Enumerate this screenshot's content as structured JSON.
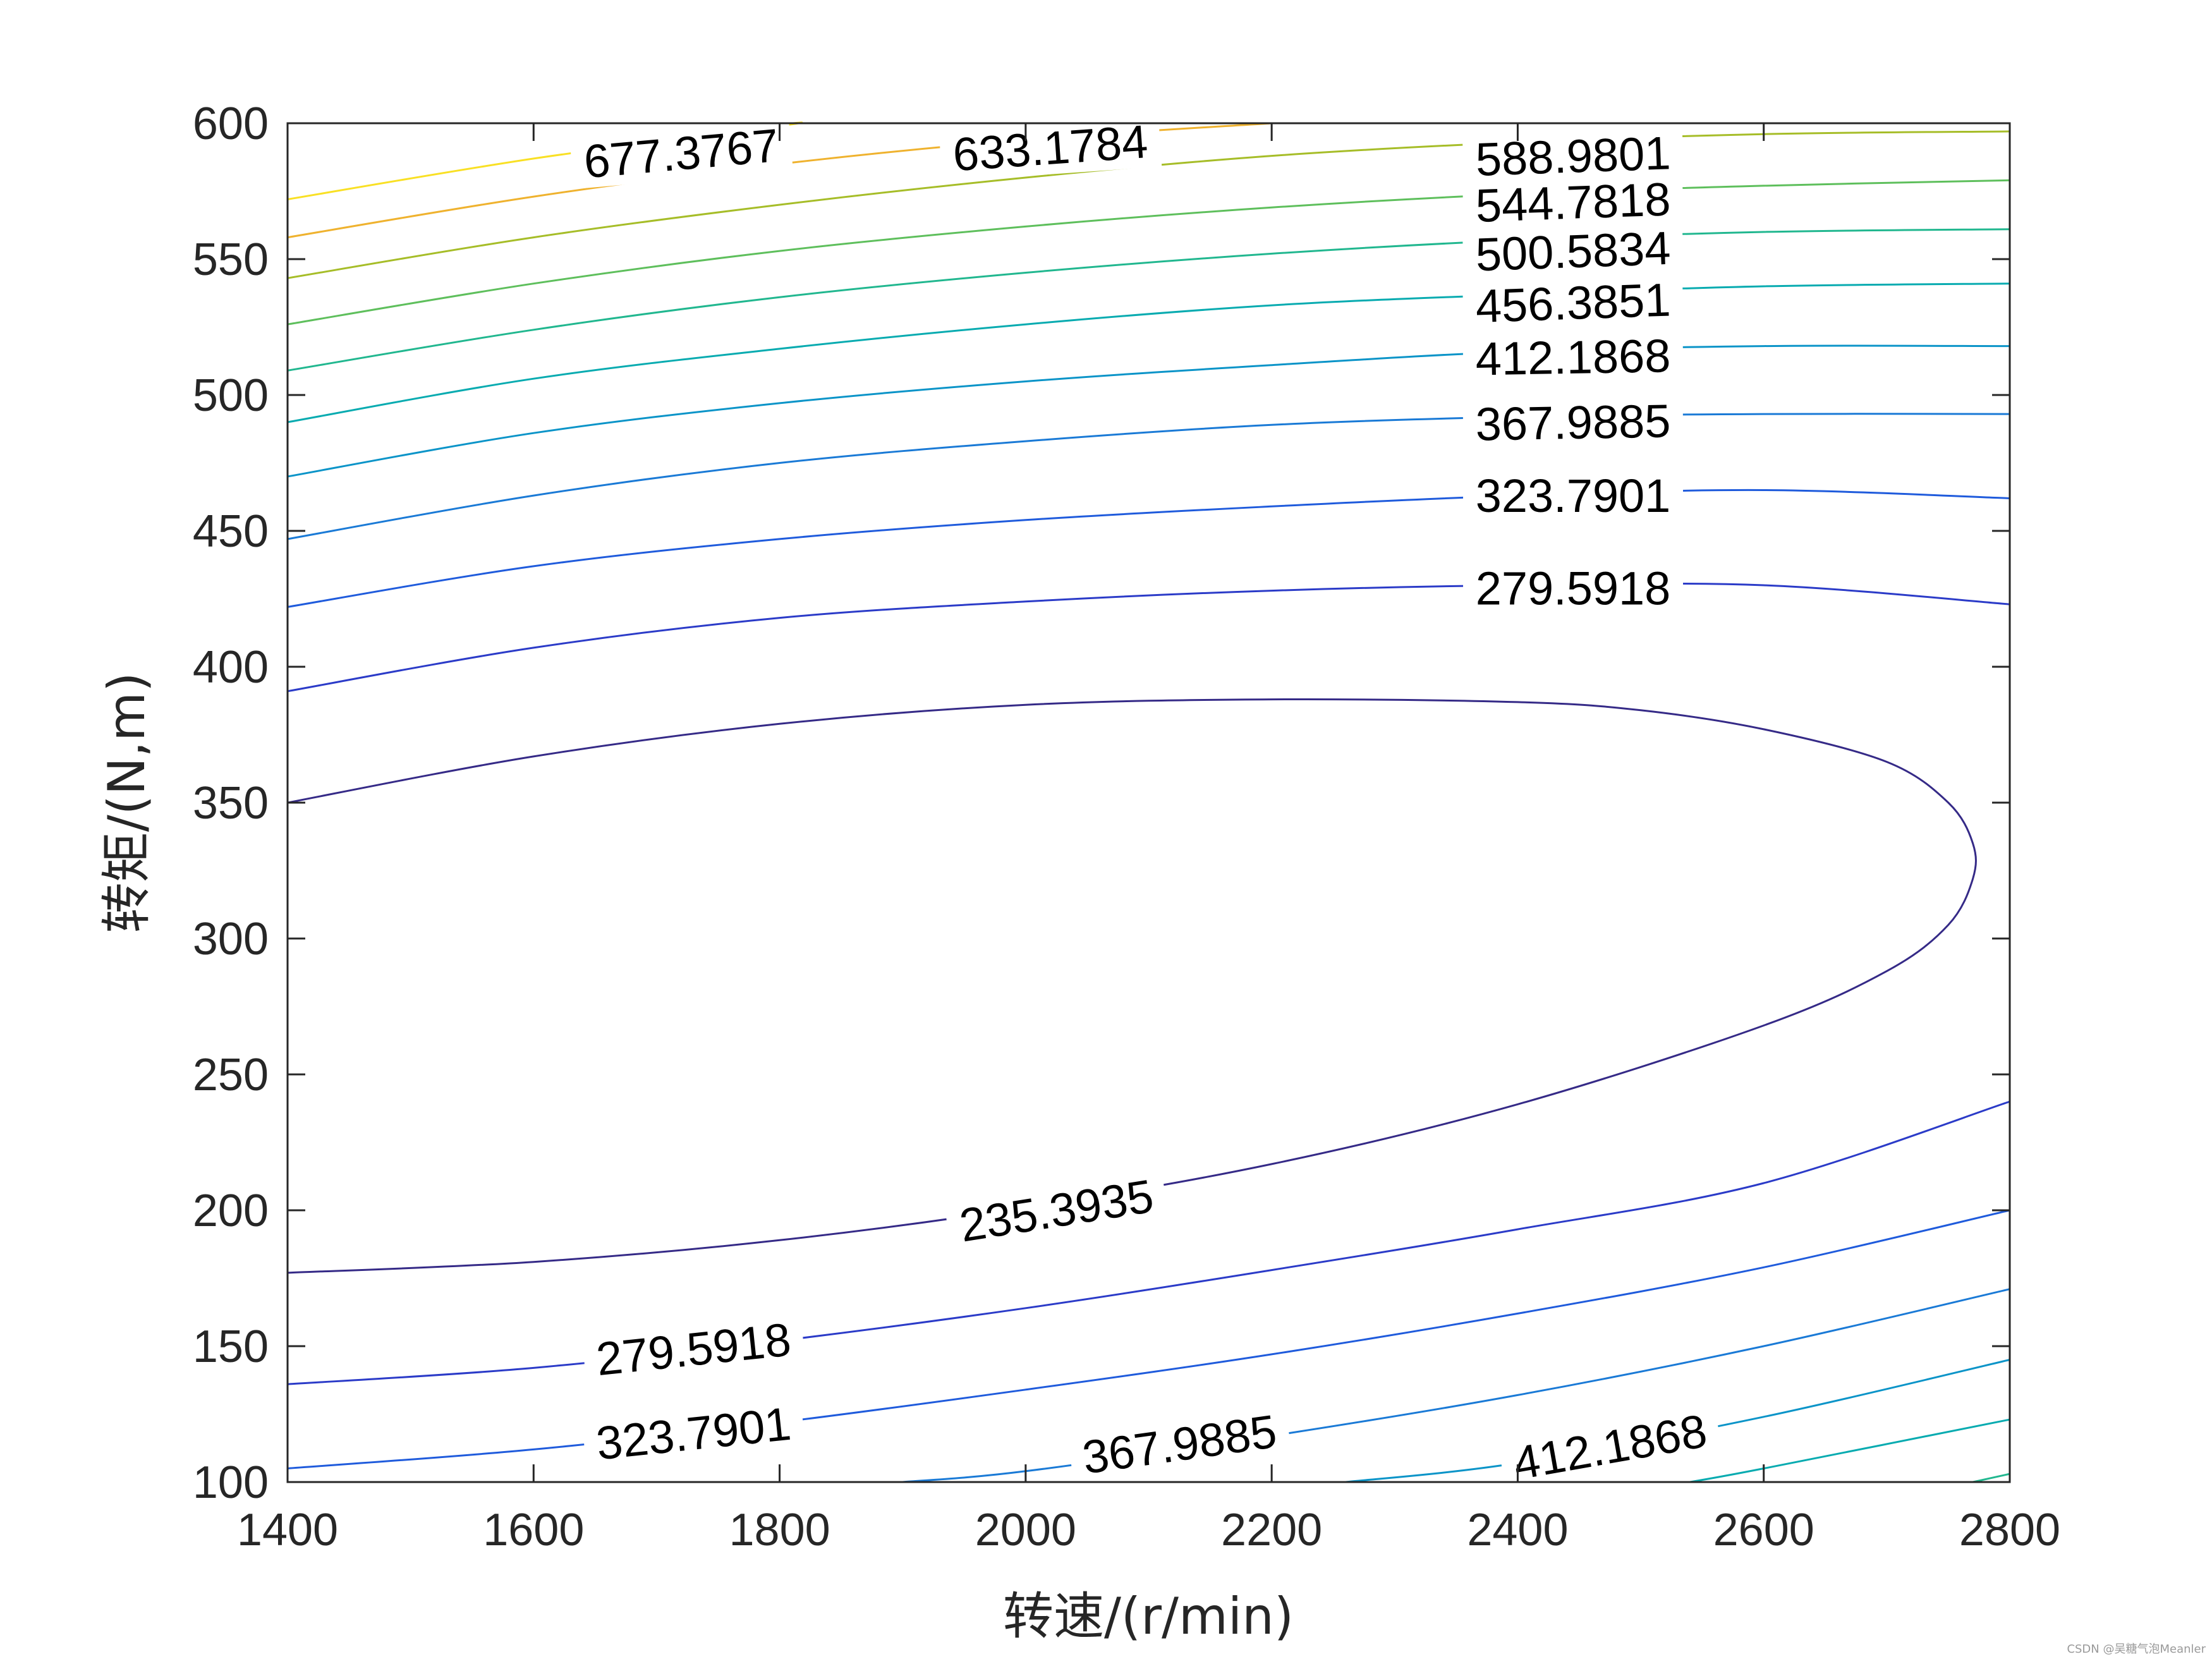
{
  "chart_data": {
    "type": "contour",
    "xlabel": "转速/(r/min)",
    "ylabel": "转矩/(N,m)",
    "xlim": [
      1400,
      2800
    ],
    "ylim": [
      100,
      600
    ],
    "xticks": [
      "1400",
      "1600",
      "1800",
      "2000",
      "2200",
      "2400",
      "2600",
      "2800"
    ],
    "yticks": [
      "100",
      "150",
      "200",
      "250",
      "300",
      "350",
      "400",
      "450",
      "500",
      "550",
      "600"
    ],
    "grid": false,
    "colormap": "parula",
    "levels": [
      {
        "value": "235.3935",
        "color": "#352a87",
        "lines": [
          [
            [
              1400,
              177
            ],
            [
              1600,
              181
            ],
            [
              1800,
              189
            ],
            [
              2000,
              201
            ],
            [
              2200,
              217
            ],
            [
              2400,
              239
            ],
            [
              2600,
              268
            ],
            [
              2700,
              288
            ],
            [
              2750,
              305
            ],
            [
              2770,
              322
            ],
            [
              2770,
              335
            ],
            [
              2750,
              350
            ],
            [
              2700,
              365
            ],
            [
              2600,
              377
            ],
            [
              2500,
              384
            ],
            [
              2400,
              387
            ],
            [
              2200,
              388
            ],
            [
              2000,
              386
            ],
            [
              1800,
              379
            ],
            [
              1600,
              367
            ],
            [
              1400,
              350
            ]
          ]
        ]
      },
      {
        "value": "279.5918",
        "color": "#2b3bc8",
        "lines": [
          [
            [
              1400,
              136
            ],
            [
              1600,
              142
            ],
            [
              1800,
              152
            ],
            [
              2000,
              164
            ],
            [
              2200,
              178
            ],
            [
              2400,
              193
            ],
            [
              2600,
              210
            ],
            [
              2800,
              240
            ]
          ],
          [
            [
              1400,
              391
            ],
            [
              1600,
              407
            ],
            [
              1800,
              418
            ],
            [
              2000,
              424
            ],
            [
              2200,
              428
            ],
            [
              2400,
              430
            ],
            [
              2600,
              430
            ],
            [
              2800,
              423
            ]
          ]
        ]
      },
      {
        "value": "323.7901",
        "color": "#1f5bdc",
        "lines": [
          [
            [
              1400,
              105
            ],
            [
              1600,
              112
            ],
            [
              1800,
              122
            ],
            [
              2000,
              134
            ],
            [
              2200,
              147
            ],
            [
              2400,
              162
            ],
            [
              2600,
              179
            ],
            [
              2800,
              200
            ]
          ],
          [
            [
              1400,
              422
            ],
            [
              1600,
              437
            ],
            [
              1800,
              447
            ],
            [
              2000,
              454
            ],
            [
              2200,
              459
            ],
            [
              2400,
              463
            ],
            [
              2600,
              465
            ],
            [
              2800,
              462
            ]
          ]
        ]
      },
      {
        "value": "367.9885",
        "color": "#1a7ad6",
        "lines": [
          [
            [
              1900,
              100
            ],
            [
              2000,
              104
            ],
            [
              2200,
              117
            ],
            [
              2400,
              132
            ],
            [
              2600,
              150
            ],
            [
              2800,
              171
            ]
          ],
          [
            [
              1400,
              447
            ],
            [
              1600,
              463
            ],
            [
              1800,
              475
            ],
            [
              2000,
              483
            ],
            [
              2200,
              489
            ],
            [
              2400,
              492
            ],
            [
              2600,
              493
            ],
            [
              2800,
              493
            ]
          ]
        ]
      },
      {
        "value": "412.1868",
        "color": "#0b94c8",
        "lines": [
          [
            [
              2260,
              100
            ],
            [
              2400,
              107
            ],
            [
              2600,
              124
            ],
            [
              2800,
              145
            ]
          ],
          [
            [
              1400,
              470
            ],
            [
              1600,
              486
            ],
            [
              1800,
              497
            ],
            [
              2000,
              505
            ],
            [
              2200,
              511
            ],
            [
              2400,
              516
            ],
            [
              2600,
              518
            ],
            [
              2800,
              518
            ]
          ]
        ]
      },
      {
        "value": "456.3851",
        "color": "#08abb0",
        "lines": [
          [
            [
              2540,
              100
            ],
            [
              2600,
              105
            ],
            [
              2800,
              123
            ]
          ],
          [
            [
              1400,
              490
            ],
            [
              1600,
              506
            ],
            [
              1800,
              517
            ],
            [
              2000,
              526
            ],
            [
              2200,
              533
            ],
            [
              2400,
              537
            ],
            [
              2600,
              540
            ],
            [
              2800,
              541
            ]
          ]
        ]
      },
      {
        "value": "500.5834",
        "color": "#21b78f",
        "lines": [
          [
            [
              2770,
              100
            ],
            [
              2800,
              103
            ]
          ],
          [
            [
              1400,
              509
            ],
            [
              1600,
              524
            ],
            [
              1800,
              536
            ],
            [
              2000,
              545
            ],
            [
              2200,
              552
            ],
            [
              2400,
              557
            ],
            [
              2600,
              560
            ],
            [
              2800,
              561
            ]
          ]
        ]
      },
      {
        "value": "544.7818",
        "color": "#5ebf5c",
        "lines": [
          [
            [
              1400,
              526
            ],
            [
              1600,
              541
            ],
            [
              1800,
              553
            ],
            [
              2000,
              562
            ],
            [
              2200,
              569
            ],
            [
              2400,
              574
            ],
            [
              2600,
              577
            ],
            [
              2800,
              579
            ]
          ]
        ]
      },
      {
        "value": "588.9801",
        "color": "#a6bd28",
        "lines": [
          [
            [
              1400,
              543
            ],
            [
              1600,
              558
            ],
            [
              1800,
              570
            ],
            [
              2000,
              580
            ],
            [
              2200,
              588
            ],
            [
              2400,
              593
            ],
            [
              2600,
              596
            ],
            [
              2800,
              597
            ]
          ]
        ]
      },
      {
        "value": "633.1784",
        "color": "#efb22e",
        "lines": [
          [
            [
              1400,
              558
            ],
            [
              1600,
              573
            ],
            [
              1800,
              585
            ],
            [
              2000,
              594
            ],
            [
              2200,
              600
            ]
          ]
        ]
      },
      {
        "value": "677.3767",
        "color": "#f9e024",
        "lines": [
          [
            [
              1400,
              572
            ],
            [
              1600,
              587
            ],
            [
              1800,
              599
            ],
            [
              1810,
              600
            ]
          ]
        ]
      }
    ],
    "labels": [
      {
        "text": "677.3767",
        "x": 1720,
        "y": 589,
        "angle": -5
      },
      {
        "text": "633.1784",
        "x": 2020,
        "y": 591,
        "angle": -4
      },
      {
        "text": "588.9801",
        "x": 2445,
        "y": 588,
        "angle": -2
      },
      {
        "text": "544.7818",
        "x": 2445,
        "y": 571,
        "angle": -2
      },
      {
        "text": "500.5834",
        "x": 2445,
        "y": 553,
        "angle": -2
      },
      {
        "text": "456.3851",
        "x": 2445,
        "y": 534,
        "angle": -2
      },
      {
        "text": "412.1868",
        "x": 2445,
        "y": 514,
        "angle": -1
      },
      {
        "text": "367.9885",
        "x": 2445,
        "y": 490,
        "angle": -1
      },
      {
        "text": "323.7901",
        "x": 2445,
        "y": 463,
        "angle": 0
      },
      {
        "text": "279.5918",
        "x": 2445,
        "y": 429,
        "angle": 0
      },
      {
        "text": "235.3935",
        "x": 2025,
        "y": 200,
        "angle": -9
      },
      {
        "text": "279.5918",
        "x": 1730,
        "y": 149,
        "angle": -6
      },
      {
        "text": "323.7901",
        "x": 1730,
        "y": 118,
        "angle": -6
      },
      {
        "text": "367.9885",
        "x": 2125,
        "y": 114,
        "angle": -8
      },
      {
        "text": "412.1868",
        "x": 2475,
        "y": 113,
        "angle": -10
      }
    ]
  },
  "watermark": "CSDN @吴糖气泡Meanler"
}
